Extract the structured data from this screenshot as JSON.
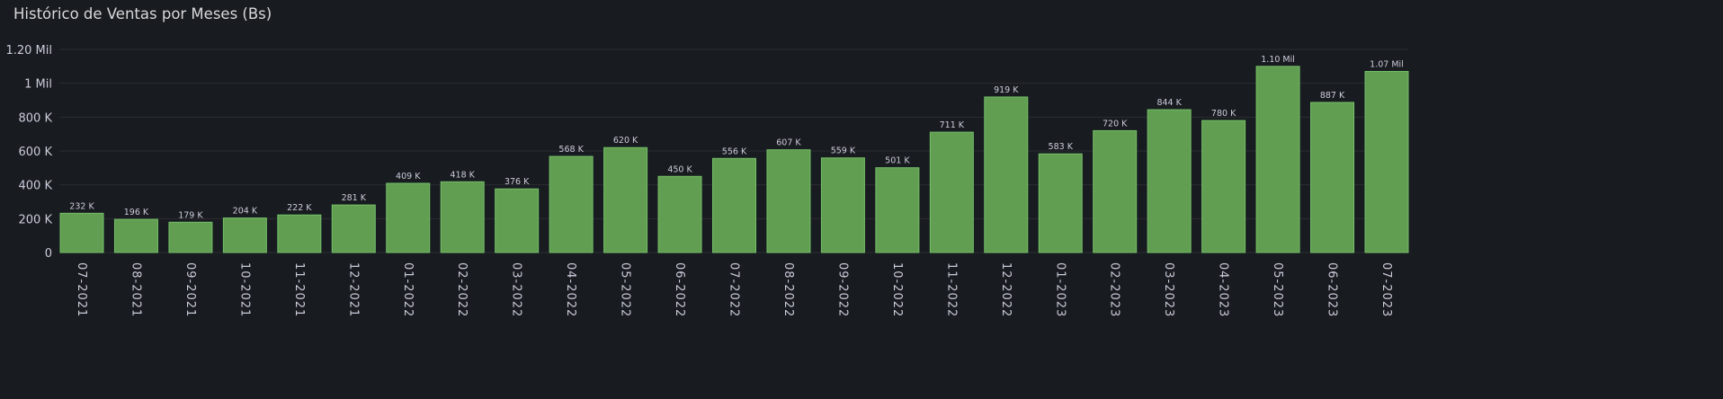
{
  "panel": {
    "title": "Histórico de Ventas por Meses (Bs)"
  },
  "colors": {
    "background": "#181b1f",
    "bar_fill": "#629e51",
    "bar_stroke": "#73bf69",
    "grid": "#2a2d33",
    "text": "#ccccdc"
  },
  "chart_data": {
    "type": "bar",
    "title": "Histórico de Ventas por Meses (Bs)",
    "xlabel": "",
    "ylabel": "",
    "ylim": [
      0,
      1200000
    ],
    "grid": true,
    "y_ticks": [
      {
        "value": 0,
        "label": "0"
      },
      {
        "value": 200000,
        "label": "200 K"
      },
      {
        "value": 400000,
        "label": "400 K"
      },
      {
        "value": 600000,
        "label": "600 K"
      },
      {
        "value": 800000,
        "label": "800 K"
      },
      {
        "value": 1000000,
        "label": "1 Mil"
      },
      {
        "value": 1200000,
        "label": "1.20 Mil"
      }
    ],
    "categories": [
      "07-2021",
      "08-2021",
      "09-2021",
      "10-2021",
      "11-2021",
      "12-2021",
      "01-2022",
      "02-2022",
      "03-2022",
      "04-2022",
      "05-2022",
      "06-2022",
      "07-2022",
      "08-2022",
      "09-2022",
      "10-2022",
      "11-2022",
      "12-2022",
      "01-2023",
      "02-2023",
      "03-2023",
      "04-2023",
      "05-2023",
      "06-2023",
      "07-2023"
    ],
    "values": [
      232000,
      196000,
      179000,
      204000,
      222000,
      281000,
      409000,
      418000,
      376000,
      568000,
      620000,
      450000,
      556000,
      607000,
      559000,
      501000,
      711000,
      919000,
      583000,
      720000,
      844000,
      780000,
      1100000,
      887000,
      1070000
    ],
    "data_labels": [
      "232 K",
      "196 K",
      "179 K",
      "204 K",
      "222 K",
      "281 K",
      "409 K",
      "418 K",
      "376 K",
      "568 K",
      "620 K",
      "450 K",
      "556 K",
      "607 K",
      "559 K",
      "501 K",
      "711 K",
      "919 K",
      "583 K",
      "720 K",
      "844 K",
      "780 K",
      "1.10 Mil",
      "887 K",
      "1.07 Mil"
    ]
  }
}
